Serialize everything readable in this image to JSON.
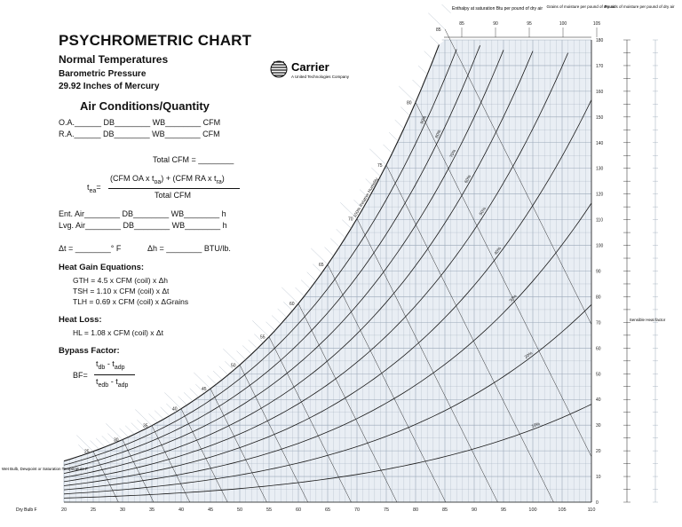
{
  "header": {
    "title": "PSYCHROMETRIC CHART",
    "subtitle": "Normal Temperatures",
    "pressure_label": "Barometric Pressure",
    "pressure_value": "29.92 Inches of Mercury",
    "brand": "Carrier",
    "brand_tagline": "A United Technologies Company"
  },
  "worksheet": {
    "heading": "Air Conditions/Quantity",
    "oa_row": "O.A.______ DB________ WB________ CFM",
    "ra_row": "R.A.______ DB________ WB________ CFM",
    "total_cfm": "Total CFM = ________",
    "tea_lhs": "t",
    "tea_lhs_sub": "ea",
    "tea_eq": "=",
    "tea_numerator": "(CFM OA x t",
    "tea_num_sub1": "oa",
    "tea_num_mid": ") + (CFM RA x t",
    "tea_num_sub2": "ra",
    "tea_num_end": ")",
    "tea_denominator": "Total CFM",
    "ent_row": "Ent. Air________ DB________ WB________ h",
    "lvg_row": "Lvg. Air________ DB________ WB________ h",
    "delta_t": "Δt = ________° F",
    "delta_h": "Δh = ________ BTU/lb.",
    "heat_gain_heading": "Heat Gain Equations:",
    "gth": "GTH = 4.5 x CFM (coil) x Δh",
    "tsh": "TSH = 1.10 x CFM (coil) x Δt",
    "tlh": "TLH = 0.69 x CFM (coil) x ΔGrains",
    "heat_loss_heading": "Heat Loss:",
    "hl": "HL = 1.08 x CFM (coil) x Δt",
    "bypass_heading": "Bypass Factor:",
    "bf_lhs": "BF=",
    "bf_numerator": "t",
    "bf_num_sub1": "db",
    "bf_num_mid": " - t",
    "bf_num_sub2": "adp",
    "bf_denominator": "t",
    "bf_den_sub1": "edb",
    "bf_den_mid": " - t",
    "bf_den_sub2": "adp"
  },
  "chart_labels": {
    "enthalpy_top": "Enthalpy at saturation Btu per pound of dry air",
    "grains_top": "Grains of moisture per pound of dry air",
    "pounds_top": "Pounds of moisture per pound of dry air",
    "shf_label": "Sensible Heat factor",
    "wet_bulb_axis": "Wet Bulb, Dewpoint or Saturation Temperature F",
    "dry_bulb_axis": "Dry Bulb F"
  },
  "chart_data": {
    "type": "psychrometric",
    "dry_bulb_ticks": [
      20,
      25,
      30,
      35,
      40,
      45,
      50,
      55,
      60,
      65,
      70,
      75,
      80,
      85,
      90,
      95,
      100,
      105,
      110
    ],
    "dry_bulb_labels": [
      "20",
      "25",
      "30",
      "35",
      "40",
      "45",
      "50",
      "55",
      "60",
      "65",
      "70",
      "75",
      "80",
      "85",
      "90",
      "95",
      "100",
      "105",
      "110"
    ],
    "xlim": [
      20,
      110
    ],
    "grains_ticks": [
      0,
      10,
      20,
      30,
      40,
      50,
      60,
      70,
      80,
      90,
      100,
      110,
      120,
      130,
      140,
      150,
      160,
      170,
      180
    ],
    "grains_labels": [
      "0",
      "10",
      "20",
      "30",
      "40",
      "50",
      "60",
      "70",
      "80",
      "90",
      "100",
      "110",
      "120",
      "130",
      "140",
      "150",
      "160",
      "170",
      "180"
    ],
    "ylim": [
      0,
      180
    ],
    "rh_curves": [
      10,
      20,
      30,
      40,
      50,
      60,
      70,
      80,
      90,
      100
    ],
    "rh_labels": [
      "10%",
      "20%",
      "30%",
      "40%",
      "50%",
      "60%",
      "70%",
      "80%",
      "90%",
      "100% Relative Humidity"
    ],
    "wet_bulb_ticks": [
      25,
      30,
      35,
      40,
      45,
      50,
      55,
      60,
      65,
      70,
      75,
      80,
      85
    ],
    "wet_bulb_labels": [
      "25",
      "30",
      "35",
      "40",
      "45",
      "50",
      "55",
      "60",
      "65",
      "70",
      "75",
      "80",
      "85"
    ],
    "enthalpy_top_ticks": [
      85,
      90,
      95,
      100,
      105
    ],
    "enthalpy_top_labels": [
      "85",
      "90",
      "95",
      "100",
      "105"
    ]
  },
  "colors": {
    "ink": "#1a1a1a",
    "grid": "#9aa8b8",
    "saturation_bg": "#e6ecf3",
    "paper": "#ffffff"
  }
}
